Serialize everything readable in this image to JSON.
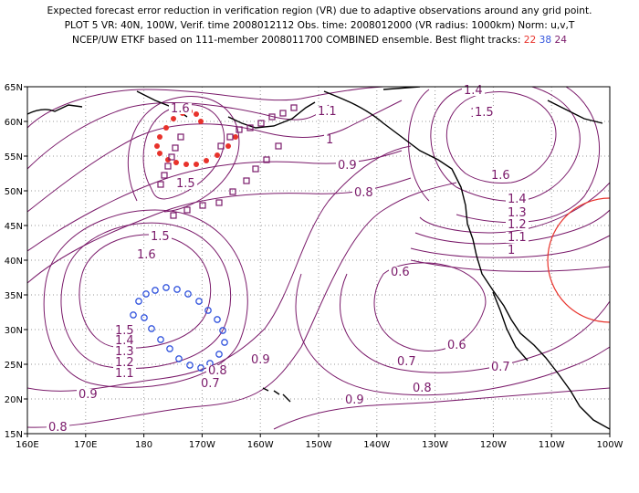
{
  "header": {
    "line1": "Expected forecast error reduction in verification region (VR) due to adaptive observations around any grid point.",
    "line2": "PLOT 5 VR: 40N, 100W, Verif. time 2008012112 Obs. time: 2008012000 (VR radius: 1000km) Norm: u,v,T",
    "line3_prefix": "NCEP/UW ETKF based on 111-member 2008011700 COMBINED ensemble.  Best flight tracks:",
    "track_a": "22",
    "track_b": "38",
    "track_c": "24"
  },
  "colors": {
    "contour": "#7a1a6a",
    "coast": "#000000",
    "vr_circle": "#e8322b",
    "track_22": "#e8322b",
    "track_38": "#3355dd",
    "track_24": "#7a1a6a"
  },
  "map": {
    "lon_ticks": [
      "160E",
      "170E",
      "180",
      "170W",
      "160W",
      "150W",
      "140W",
      "130W",
      "120W",
      "110W",
      "100W"
    ],
    "lat_ticks": [
      "65N",
      "60N",
      "55N",
      "50N",
      "45N",
      "40N",
      "35N",
      "30N",
      "25N",
      "20N",
      "15N"
    ],
    "contour_labels": [
      "1.4",
      "1.5",
      "1.6",
      "1.1",
      "1",
      "0.9",
      "0.8",
      "1.6",
      "1.5",
      "1.5",
      "1.4",
      "1.3",
      "1.2",
      "1.1",
      "1",
      "1.5",
      "1.6",
      "0.6",
      "0.6",
      "0.7",
      "0.7",
      "0.8",
      "0.9",
      "1.5",
      "1.4",
      "1.3",
      "1.2",
      "1.1",
      "0.9",
      "0.8",
      "0.7",
      "0.9",
      "0.8"
    ]
  }
}
